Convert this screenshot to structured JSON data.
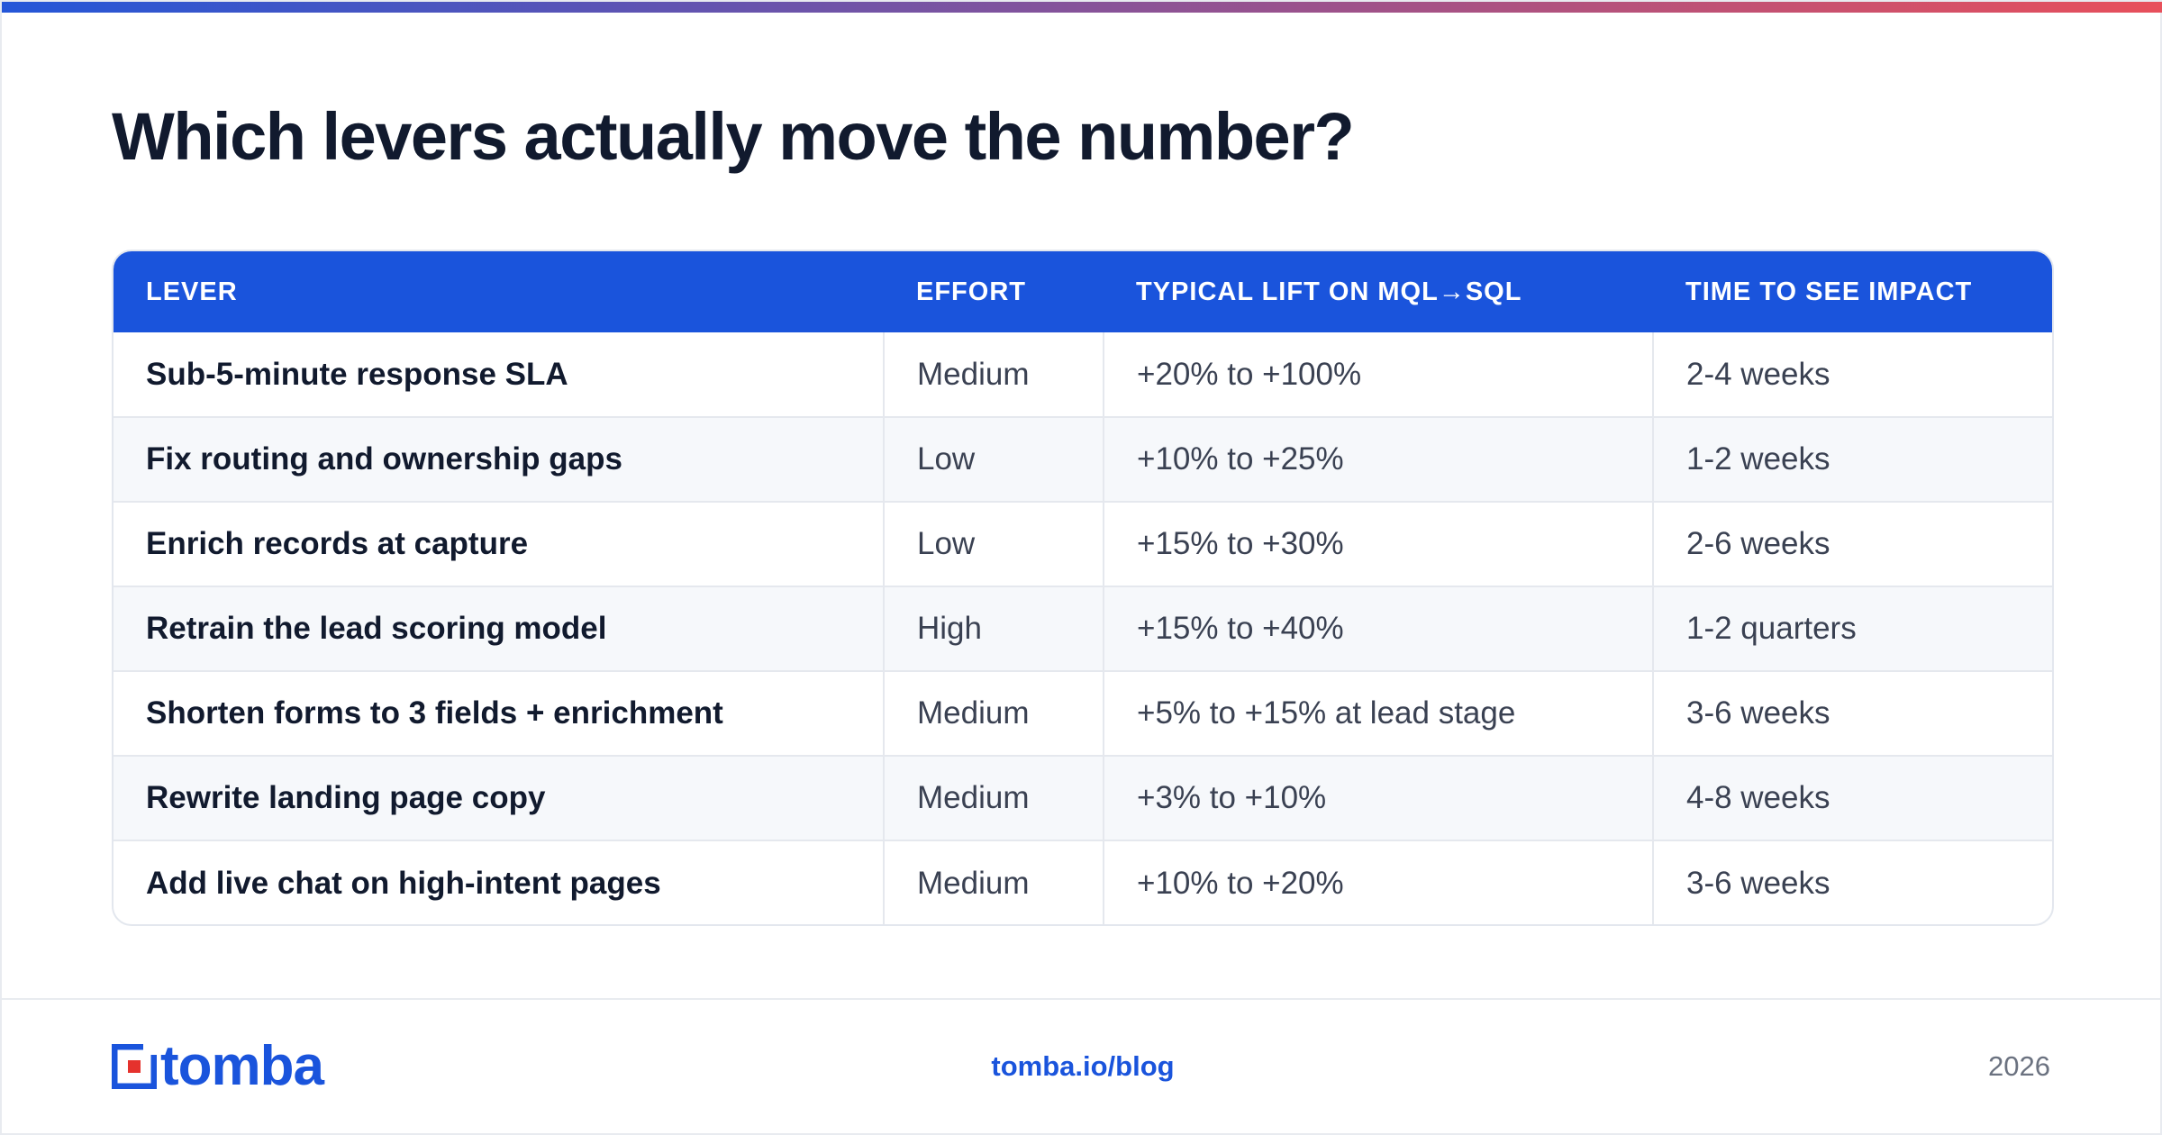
{
  "colors": {
    "accent": "#1a54dc",
    "gradient_start": "#2456d8",
    "gradient_end": "#e8505b",
    "title": "#111a2e",
    "body_text": "#3a4152",
    "muted": "#6b7280",
    "logo_red": "#e5322d"
  },
  "title": "Which levers actually move the number?",
  "table": {
    "headers": [
      "LEVER",
      "EFFORT",
      "TYPICAL LIFT ON MQL→SQL",
      "TIME TO SEE IMPACT"
    ],
    "rows": [
      {
        "lever": "Sub-5-minute response SLA",
        "effort": "Medium",
        "lift": "+20% to +100%",
        "time": "2-4 weeks"
      },
      {
        "lever": "Fix routing and ownership gaps",
        "effort": "Low",
        "lift": "+10% to +25%",
        "time": "1-2 weeks"
      },
      {
        "lever": "Enrich records at capture",
        "effort": "Low",
        "lift": "+15% to +30%",
        "time": "2-6 weeks"
      },
      {
        "lever": "Retrain the lead scoring model",
        "effort": "High",
        "lift": "+15% to +40%",
        "time": "1-2 quarters"
      },
      {
        "lever": "Shorten forms to 3 fields + enrichment",
        "effort": "Medium",
        "lift": "+5% to +15% at lead stage",
        "time": "3-6 weeks"
      },
      {
        "lever": "Rewrite landing page copy",
        "effort": "Medium",
        "lift": "+3% to +10%",
        "time": "4-8 weeks"
      },
      {
        "lever": "Add live chat on high-intent pages",
        "effort": "Medium",
        "lift": "+10% to +20%",
        "time": "3-6 weeks"
      }
    ]
  },
  "footer": {
    "logo_text": "tomba",
    "logo_icon": "tomba-logo-icon",
    "url": "tomba.io/blog",
    "year": "2026"
  }
}
